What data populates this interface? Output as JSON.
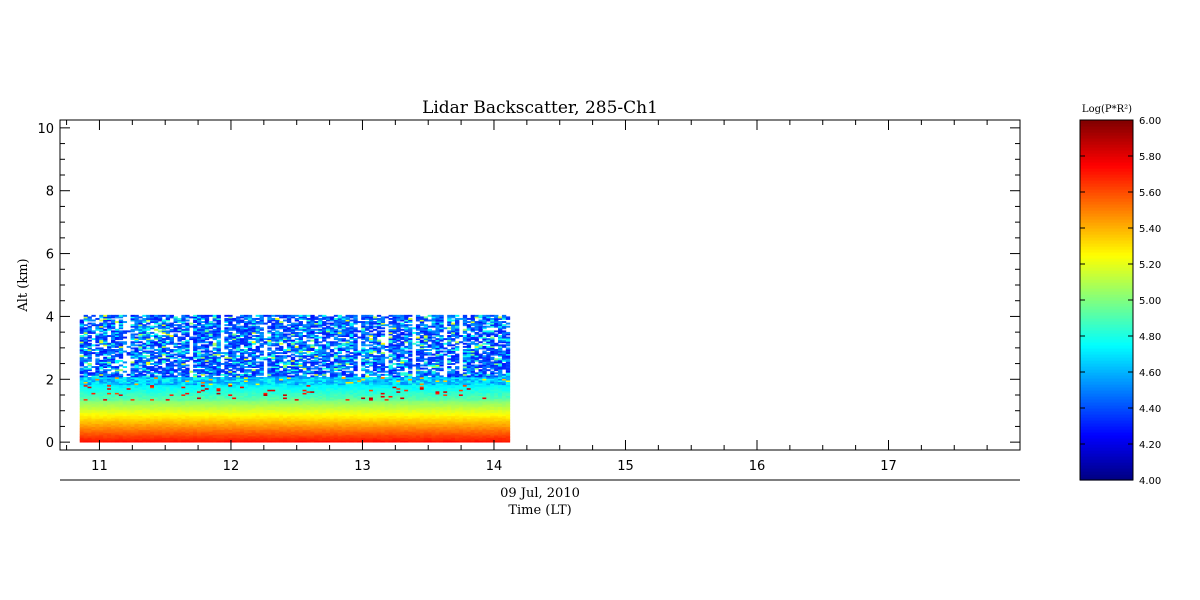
{
  "chart_data": {
    "type": "heatmap",
    "title": "Lidar Backscatter, 285-Ch1",
    "xlabel": "Time (LT)",
    "date_label": "09 Jul, 2010",
    "ylabel": "Alt (km)",
    "xlim": [
      10.7,
      18.0
    ],
    "ylim": [
      -0.25,
      10.25
    ],
    "x_ticks": [
      "11",
      "12",
      "13",
      "14",
      "15",
      "16",
      "17"
    ],
    "y_ticks": [
      "0",
      "2",
      "4",
      "6",
      "8",
      "10"
    ],
    "data_time_range": [
      10.85,
      14.12
    ],
    "data_alt_range": [
      0,
      4.05
    ],
    "colorbar": {
      "title": "Log(P*R²)",
      "range": [
        4.0,
        6.0
      ],
      "ticks": [
        "4.00",
        "4.20",
        "4.40",
        "4.60",
        "4.80",
        "5.00",
        "5.20",
        "5.40",
        "5.60",
        "5.80",
        "6.00"
      ],
      "colormap": "jet"
    },
    "profile_levels": [
      {
        "alt_range": [
          0,
          0.3
        ],
        "value": 5.7
      },
      {
        "alt_range": [
          0.3,
          0.8
        ],
        "value": 5.3
      },
      {
        "alt_range": [
          0.8,
          1.3
        ],
        "value": 5.05
      },
      {
        "alt_range": [
          1.3,
          1.75
        ],
        "value": 4.85
      },
      {
        "alt_range": [
          1.75,
          2.0
        ],
        "value": 4.65
      },
      {
        "alt_range": [
          2.0,
          4.05
        ],
        "value": 4.45
      }
    ],
    "cloud_layer": {
      "alt_range": [
        1.3,
        1.9
      ],
      "value_range": [
        5.6,
        5.9
      ]
    }
  }
}
